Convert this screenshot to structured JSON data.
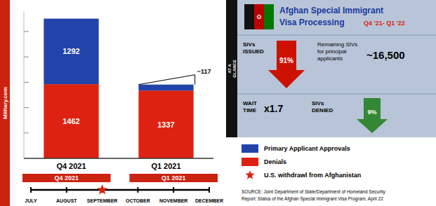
{
  "chart_data": {
    "type": "bar",
    "stacked": true,
    "title": "Afghan Special Immigrant\nVisa Processing",
    "subtitle": "Q4 '21- Q1 '22",
    "categories": [
      "Q4 2021",
      "Q1 2021"
    ],
    "series": [
      {
        "name": "Denials",
        "color": "#dd2211",
        "values": [
          1462,
          1337
        ]
      },
      {
        "name": "Primary Applicant Approvals",
        "color": "#2244aa",
        "values": [
          1292,
          117
        ],
        "value_labels": [
          "1292",
          null
        ]
      }
    ],
    "ylim": [
      0,
      2900
    ],
    "yticks": [
      500,
      1000,
      1500,
      2000,
      2500
    ],
    "tick_labels": "x",
    "grid": false,
    "legend": "lower right",
    "data_labels": true,
    "annotations": [
      "~117",
      "Military.com",
      "AT A\nGLANCE",
      "✿",
      "SIVs\nISSUED",
      "91%",
      "Remaining SIVs\nfor principal\napplicants",
      "~16,500",
      "WAIT\nTIME",
      "x1.7",
      "SIVs\nDENIED",
      "9%",
      "U.S. withdrawl from Afghanistan",
      "Q4 2021",
      "Q1 2021",
      "JULY",
      "AUGUST",
      "SEPTEMBER",
      "OCTOBER",
      "NOVEMBER",
      "DECEMBER",
      "SOURCE: Joint Department of State/Department of Homeland Security",
      "Report: Status of the Afghan Special Immigrant Visa Program, April 22"
    ]
  }
}
